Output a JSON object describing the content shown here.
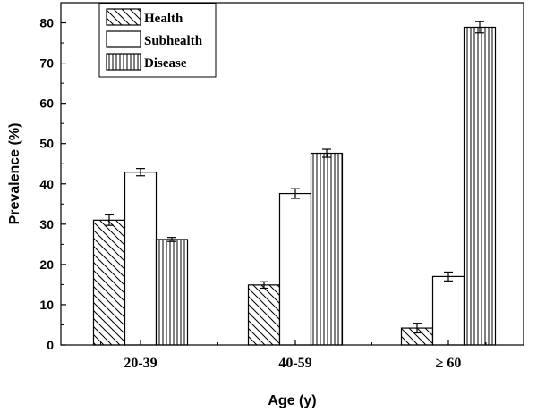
{
  "chart_data": {
    "type": "bar",
    "xlabel": "Age (y)",
    "ylabel": "Prevalence (%)",
    "ylim": [
      0,
      85
    ],
    "yticks": [
      "0",
      "10",
      "20",
      "30",
      "40",
      "50",
      "60",
      "70",
      "80"
    ],
    "categories": [
      "20-39",
      "40-59",
      "≥ 60"
    ],
    "series": [
      {
        "name": "Health",
        "pattern": "diagonal",
        "values": [
          31.0,
          14.9,
          4.2
        ],
        "errors": [
          1.3,
          0.8,
          1.2
        ]
      },
      {
        "name": "Subhealth",
        "pattern": "none",
        "values": [
          42.9,
          37.6,
          17.0
        ],
        "errors": [
          0.9,
          1.2,
          1.1
        ]
      },
      {
        "name": "Disease",
        "pattern": "vertical",
        "values": [
          26.2,
          47.6,
          78.9
        ],
        "errors": [
          0.5,
          1.0,
          1.4
        ]
      }
    ],
    "legend_position": "top-left",
    "grid": false,
    "colors": {
      "stroke": "#000000",
      "fill": "#ffffff"
    }
  }
}
